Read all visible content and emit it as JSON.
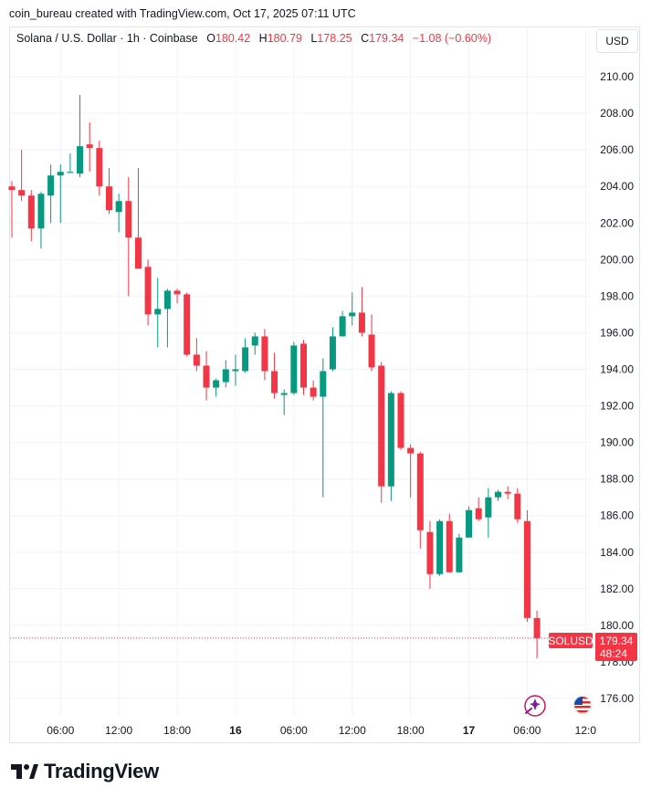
{
  "attribution": "coin_bureau created with TradingView.com, Oct 17, 2025 07:11 UTC",
  "currency_button": "USD",
  "legend": {
    "symbol": "Solana / U.S. Dollar · 1h · Coinbase",
    "open_label": "O",
    "open": "180.42",
    "high_label": "H",
    "high": "180.79",
    "low_label": "L",
    "low": "178.25",
    "close_label": "C",
    "close": "179.34",
    "change": "−1.08 (−0.60%)"
  },
  "last_price_tag": {
    "symbol": "SOLUSD",
    "price": "179.34",
    "countdown": "48:24"
  },
  "brand": {
    "wordmark": "TradingView"
  },
  "colors": {
    "up": "#089981",
    "down": "#f23645",
    "grid": "#f0f3fa",
    "text": "#131722"
  },
  "icons": [
    "tradingview-logo-icon",
    "sparkle-indicator-icon",
    "us-flag-icon"
  ],
  "chart_data": {
    "type": "candlestick",
    "ylim": [
      175,
      211.2
    ],
    "y_ticks": [
      210,
      208,
      206,
      204,
      202,
      200,
      198,
      196,
      194,
      192,
      190,
      188,
      186,
      184,
      182,
      180,
      178,
      176
    ],
    "y_tick_labels": [
      "210.00",
      "208.00",
      "206.00",
      "204.00",
      "202.00",
      "200.00",
      "198.00",
      "196.00",
      "194.00",
      "192.00",
      "190.00",
      "188.00",
      "186.00",
      "184.00",
      "182.00",
      "180.00",
      "178.00",
      "176.00"
    ],
    "x_tick_labels": [
      {
        "label": "06:00",
        "bar": 5,
        "bold": false
      },
      {
        "label": "12:00",
        "bar": 11,
        "bold": false
      },
      {
        "label": "18:00",
        "bar": 17,
        "bold": false
      },
      {
        "label": "16",
        "bar": 23,
        "bold": true
      },
      {
        "label": "06:00",
        "bar": 29,
        "bold": false
      },
      {
        "label": "12:00",
        "bar": 35,
        "bold": false
      },
      {
        "label": "18:00",
        "bar": 41,
        "bold": false
      },
      {
        "label": "17",
        "bar": 47,
        "bold": true
      },
      {
        "label": "06:00",
        "bar": 53,
        "bold": false
      },
      {
        "label": "12:0",
        "bar": 59,
        "bold": false
      }
    ],
    "candles": [
      [
        204.0,
        204.3,
        201.2,
        203.8
      ],
      [
        203.8,
        206.0,
        203.2,
        203.5
      ],
      [
        203.5,
        203.8,
        201.0,
        201.7
      ],
      [
        201.7,
        203.7,
        200.6,
        203.6
      ],
      [
        203.5,
        205.2,
        202.0,
        204.6
      ],
      [
        204.6,
        205.2,
        202.0,
        204.8
      ],
      [
        204.8,
        205.8,
        204.8,
        204.8
      ],
      [
        204.7,
        209.0,
        204.5,
        206.2
      ],
      [
        206.3,
        207.5,
        204.8,
        206.1
      ],
      [
        206.1,
        206.5,
        203.5,
        204.0
      ],
      [
        204.0,
        205.0,
        202.5,
        202.7
      ],
      [
        202.6,
        203.6,
        201.5,
        203.2
      ],
      [
        203.2,
        204.5,
        198.0,
        201.2
      ],
      [
        201.2,
        205.0,
        199.5,
        199.5
      ],
      [
        199.6,
        200.0,
        196.4,
        197.0
      ],
      [
        197.0,
        199.0,
        195.2,
        197.3
      ],
      [
        197.3,
        198.4,
        195.2,
        198.3
      ],
      [
        198.3,
        198.4,
        197.6,
        198.1
      ],
      [
        198.1,
        198.2,
        194.7,
        194.8
      ],
      [
        194.8,
        195.7,
        193.9,
        194.2
      ],
      [
        194.2,
        195.0,
        192.3,
        193.0
      ],
      [
        193.0,
        193.5,
        192.5,
        193.4
      ],
      [
        193.3,
        194.5,
        193.0,
        194.0
      ],
      [
        193.9,
        194.8,
        193.1,
        194.0
      ],
      [
        193.9,
        195.7,
        193.8,
        195.2
      ],
      [
        195.3,
        196.0,
        194.8,
        195.8
      ],
      [
        195.8,
        196.2,
        193.4,
        193.9
      ],
      [
        193.9,
        194.9,
        192.4,
        192.7
      ],
      [
        192.6,
        192.9,
        191.5,
        192.7
      ],
      [
        192.7,
        195.5,
        192.6,
        195.3
      ],
      [
        195.4,
        195.6,
        192.6,
        193.0
      ],
      [
        193.0,
        193.4,
        192.3,
        192.5
      ],
      [
        192.5,
        194.6,
        187.0,
        193.9
      ],
      [
        194.0,
        196.3,
        193.9,
        195.8
      ],
      [
        195.8,
        197.2,
        195.8,
        196.9
      ],
      [
        196.9,
        198.2,
        196.4,
        197.1
      ],
      [
        197.1,
        198.5,
        195.8,
        196.0
      ],
      [
        195.9,
        197.0,
        193.9,
        194.1
      ],
      [
        194.2,
        194.4,
        186.7,
        187.6
      ],
      [
        187.6,
        192.8,
        186.8,
        192.7
      ],
      [
        192.7,
        192.8,
        189.6,
        189.7
      ],
      [
        189.7,
        189.9,
        187.0,
        189.4
      ],
      [
        189.4,
        189.5,
        184.2,
        185.2
      ],
      [
        185.1,
        185.7,
        182.0,
        182.8
      ],
      [
        182.8,
        185.8,
        182.7,
        185.7
      ],
      [
        185.7,
        186.1,
        182.9,
        182.9
      ],
      [
        182.9,
        185.0,
        182.9,
        184.8
      ],
      [
        184.8,
        186.5,
        184.8,
        186.3
      ],
      [
        186.4,
        187.0,
        185.7,
        185.8
      ],
      [
        185.9,
        187.5,
        184.8,
        187.0
      ],
      [
        187.0,
        187.4,
        186.8,
        187.3
      ],
      [
        187.3,
        187.6,
        186.9,
        187.2
      ],
      [
        187.2,
        187.5,
        185.6,
        185.8
      ],
      [
        185.7,
        186.3,
        180.2,
        180.4
      ],
      [
        180.4,
        180.8,
        178.2,
        179.3
      ]
    ]
  }
}
